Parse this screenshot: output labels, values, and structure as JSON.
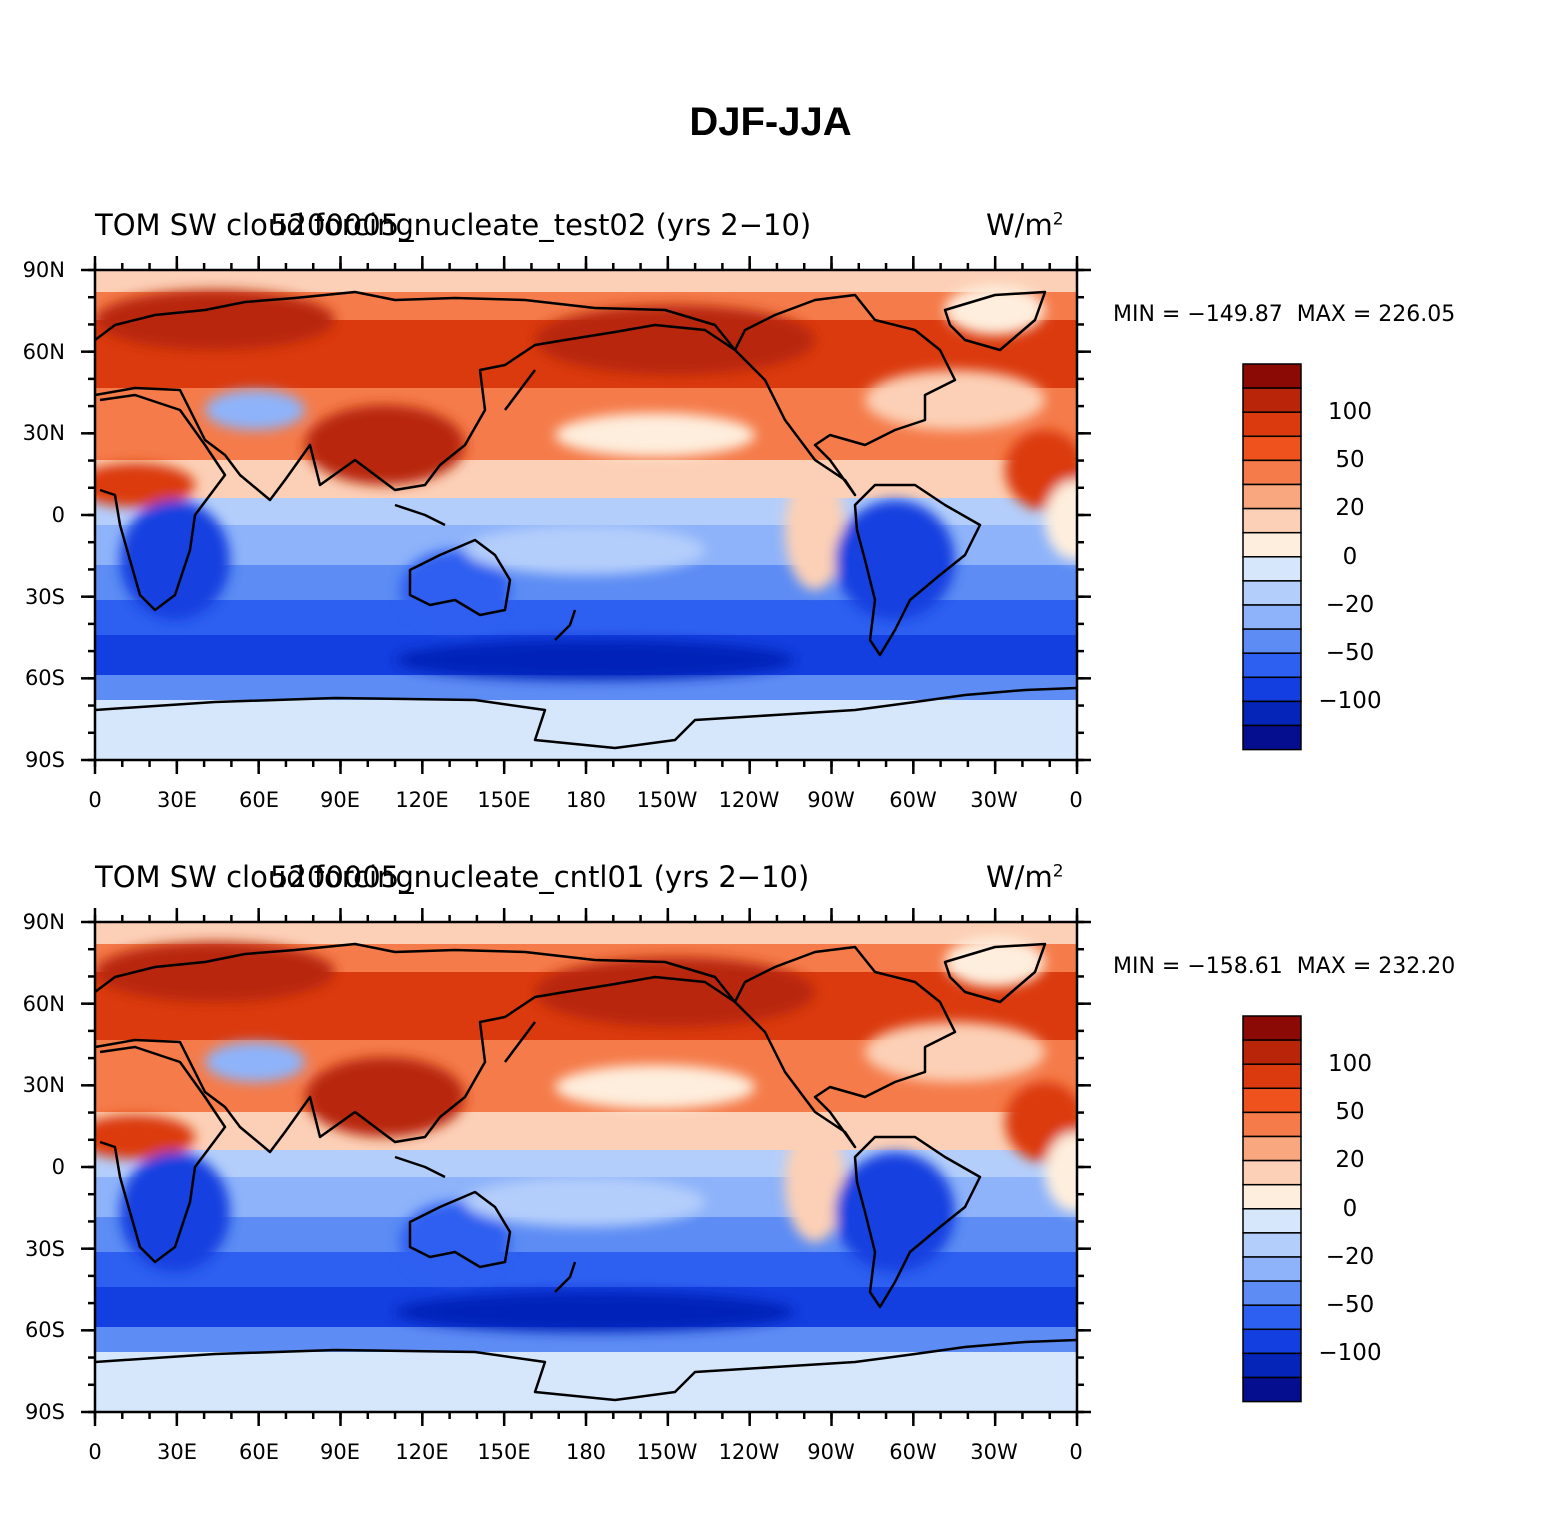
{
  "figure": {
    "title": "DJF-JJA",
    "panels": [
      {
        "left_title": "TOM SW cloud forcing",
        "center_title": "5200005_nucleate_test02 (yrs 2−10)",
        "units": "W/m",
        "units_superscript": "2",
        "min_max": "MIN = −149.87  MAX = 226.05"
      },
      {
        "left_title": "TOM SW cloud forcing",
        "center_title": "5200005_nucleate_cntl01 (yrs 2−10)",
        "units": "W/m",
        "units_superscript": "2",
        "min_max": "MIN = −158.61  MAX = 232.20"
      }
    ],
    "y_tick_labels": [
      "90N",
      "60N",
      "30N",
      "0",
      "30S",
      "60S",
      "90S"
    ],
    "x_tick_labels": [
      "0",
      "30E",
      "60E",
      "90E",
      "120E",
      "150E",
      "180",
      "150W",
      "120W",
      "90W",
      "60W",
      "30W",
      "0"
    ],
    "colorbar": {
      "labels": [
        "100",
        "50",
        "20",
        "0",
        "−20",
        "−50",
        "−100"
      ],
      "colors_top_to_bottom": [
        "#8c0a06",
        "#b82508",
        "#db3a0e",
        "#f0521e",
        "#f57b4a",
        "#f9a77e",
        "#fcd0b6",
        "#feeedd",
        "#d6e7fc",
        "#b4cefb",
        "#8eb3fa",
        "#5c8cf4",
        "#2d5ff0",
        "#133fe0",
        "#0524b8",
        "#040e8e"
      ]
    }
  }
}
